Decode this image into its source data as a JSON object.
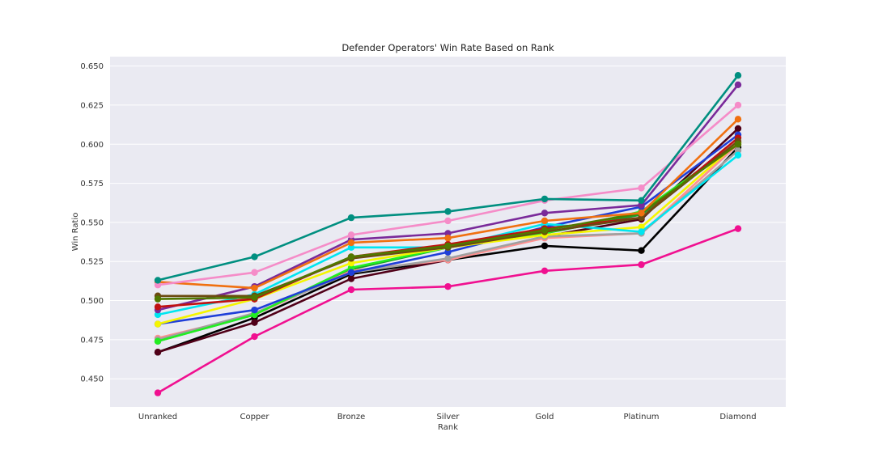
{
  "chart_data": {
    "type": "line",
    "title": "Defender Operators' Win Rate Based on Rank",
    "xlabel": "Rank",
    "ylabel": "Win Ratio",
    "categories": [
      "Unranked",
      "Copper",
      "Bronze",
      "Silver",
      "Gold",
      "Platinum",
      "Diamond"
    ],
    "ylim": [
      0.432,
      0.656
    ],
    "yticks": [
      "0.450",
      "0.475",
      "0.500",
      "0.525",
      "0.550",
      "0.575",
      "0.600",
      "0.625",
      "0.650"
    ],
    "grid": true,
    "background": "#eaeaf2",
    "series": [
      {
        "color": "#f01090",
        "values": [
          0.441,
          0.477,
          0.507,
          0.509,
          0.519,
          0.523,
          0.546
        ]
      },
      {
        "color": "#000000",
        "values": [
          0.467,
          0.489,
          0.517,
          0.526,
          0.535,
          0.532,
          0.598
        ]
      },
      {
        "color": "#500018",
        "values": [
          0.467,
          0.486,
          0.514,
          0.526,
          0.541,
          0.552,
          0.61
        ]
      },
      {
        "color": "#1a9e2a",
        "values": [
          0.474,
          0.491,
          0.52,
          0.534,
          0.543,
          0.555,
          0.601
        ]
      },
      {
        "color": "#ff9090",
        "values": [
          0.476,
          0.491,
          0.519,
          0.526,
          0.54,
          0.543,
          0.6
        ]
      },
      {
        "color": "#a0a0a0",
        "values": [
          0.475,
          0.492,
          0.518,
          0.527,
          0.541,
          0.543,
          0.596
        ]
      },
      {
        "color": "#22ee22",
        "values": [
          0.474,
          0.491,
          0.521,
          0.534,
          0.543,
          0.557,
          0.601
        ]
      },
      {
        "color": "#1f3fd8",
        "values": [
          0.485,
          0.494,
          0.518,
          0.531,
          0.547,
          0.56,
          0.606
        ]
      },
      {
        "color": "#f5f500",
        "values": [
          0.485,
          0.501,
          0.524,
          0.534,
          0.542,
          0.547,
          0.601
        ]
      },
      {
        "color": "#00e5f0",
        "values": [
          0.491,
          0.504,
          0.534,
          0.534,
          0.549,
          0.544,
          0.593
        ]
      },
      {
        "color": "#7a2a9a",
        "values": [
          0.494,
          0.509,
          0.539,
          0.543,
          0.556,
          0.561,
          0.638
        ]
      },
      {
        "color": "#c01010",
        "values": [
          0.496,
          0.501,
          0.528,
          0.536,
          0.546,
          0.553,
          0.604
        ]
      },
      {
        "color": "#6b4a10",
        "values": [
          0.503,
          0.503,
          0.527,
          0.534,
          0.544,
          0.553,
          0.602
        ]
      },
      {
        "color": "#507800",
        "values": [
          0.501,
          0.502,
          0.528,
          0.535,
          0.545,
          0.556,
          0.6
        ]
      },
      {
        "color": "#f07010",
        "values": [
          0.512,
          0.508,
          0.537,
          0.54,
          0.551,
          0.556,
          0.616
        ]
      },
      {
        "color": "#f58cc8",
        "values": [
          0.51,
          0.518,
          0.542,
          0.551,
          0.564,
          0.572,
          0.625
        ]
      },
      {
        "color": "#008f80",
        "values": [
          0.513,
          0.528,
          0.553,
          0.557,
          0.565,
          0.564,
          0.644
        ]
      }
    ]
  }
}
